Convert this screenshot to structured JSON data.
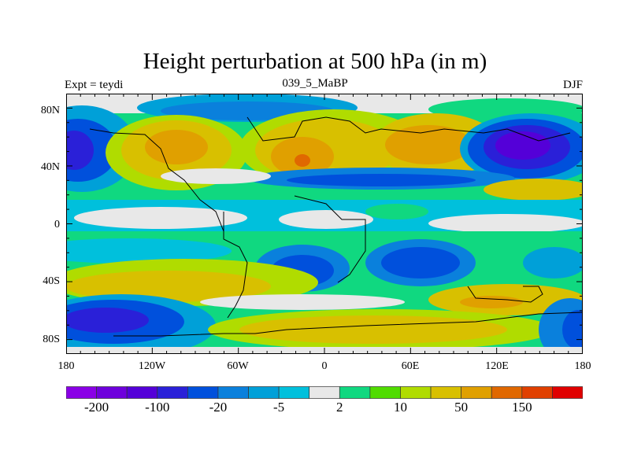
{
  "title": "Height perturbation at 500 hPa (in m)",
  "left_label": "Expt = teydi",
  "center_label": "039_5_MaBP",
  "right_label": "DJF",
  "chart_data": {
    "type": "heatmap",
    "subtype": "filled contour map",
    "title": "Height perturbation at 500 hPa (in m)",
    "x_ticks": [
      "180",
      "120W",
      "60W",
      "0",
      "60E",
      "120E",
      "180"
    ],
    "y_ticks": [
      "80N",
      "40N",
      "0",
      "40S",
      "80S"
    ],
    "xlim": [
      -180,
      180
    ],
    "ylim": [
      -90,
      90
    ],
    "colorbar": {
      "levels": [
        -200,
        -150,
        -100,
        -50,
        -20,
        -10,
        -5,
        -2,
        2,
        5,
        10,
        20,
        50,
        100,
        150,
        200
      ],
      "labels": [
        "-200",
        "-100",
        "-20",
        "-5",
        "2",
        "10",
        "50",
        "150"
      ],
      "colors": [
        "#8a00e6",
        "#6e00dc",
        "#5400d8",
        "#2a20d8",
        "#0050dc",
        "#0a80dc",
        "#00a0d8",
        "#00c0dc",
        "#e8e8e8",
        "#10d880",
        "#50dc00",
        "#b0dc00",
        "#d8c000",
        "#e0a000",
        "#e06800",
        "#e04000",
        "#e00000"
      ]
    }
  }
}
